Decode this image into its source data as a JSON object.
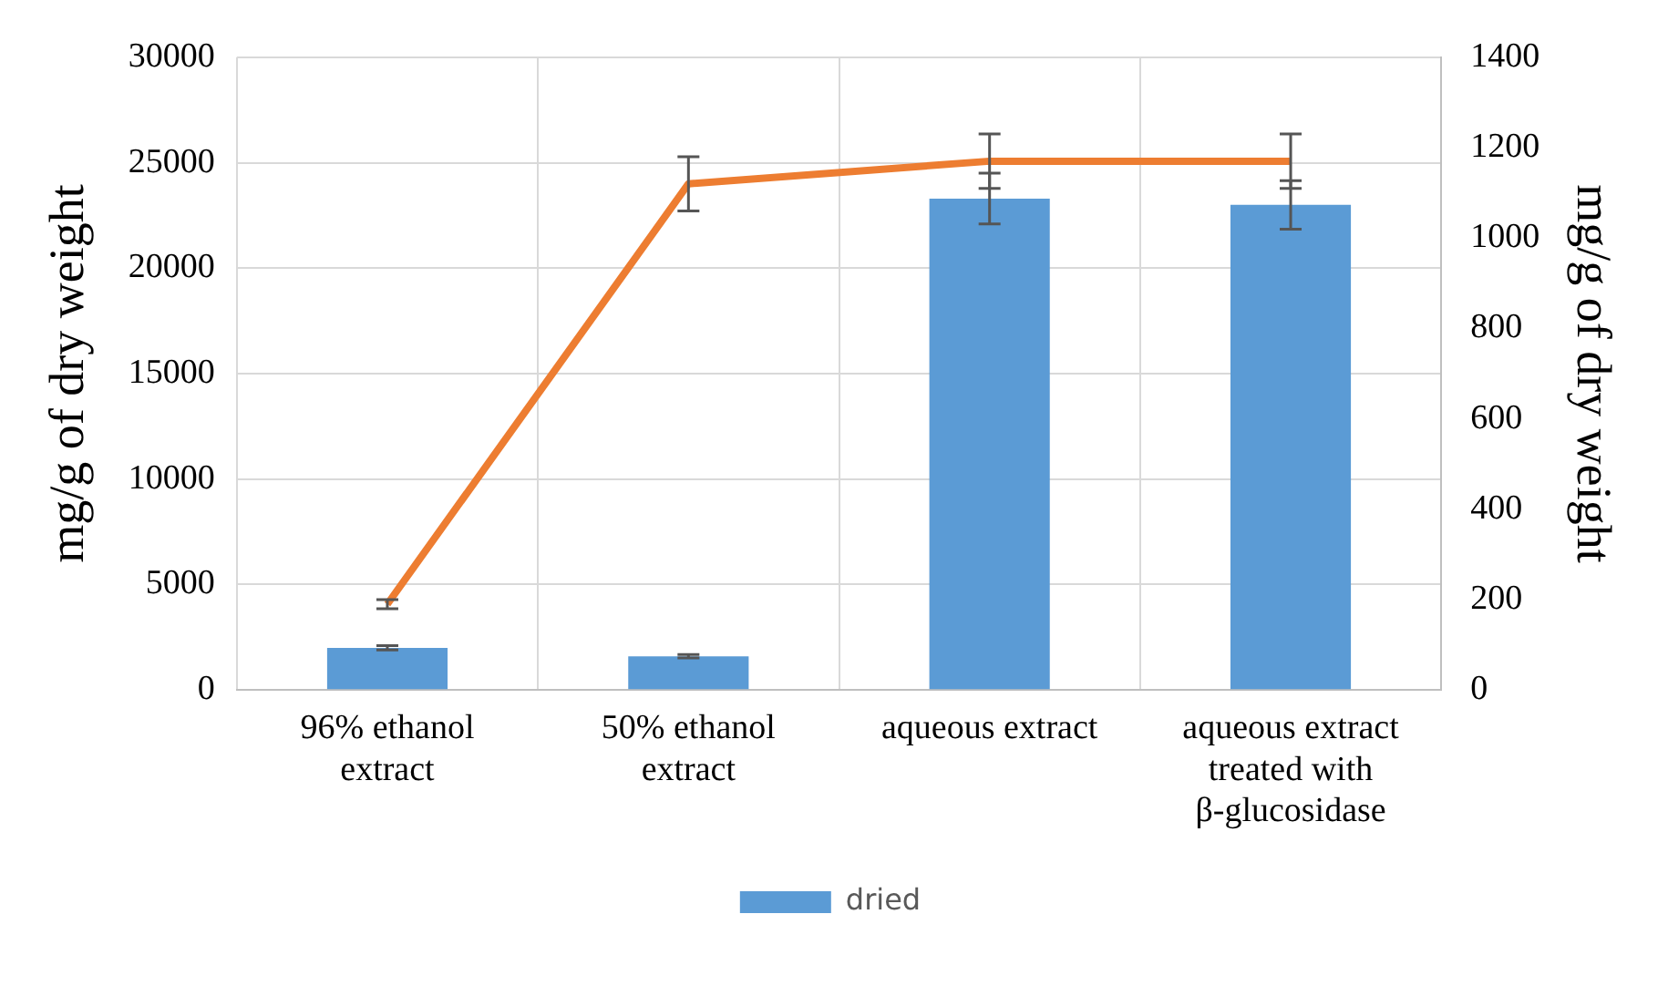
{
  "chart_data": {
    "type": "bar",
    "categories": [
      "96% ethanol extract",
      "50% ethanol extract",
      "aqueous extract",
      "aqueous extract treated with β-glucosidase"
    ],
    "series": [
      {
        "name": "dried",
        "color": "#5b9bd5",
        "values": [
          2000,
          1600,
          23300,
          23000
        ],
        "errors": [
          100,
          80,
          1200,
          1150
        ]
      },
      {
        "type": "line",
        "axis": "y2",
        "color": "#ed7d31",
        "values": [
          190,
          1120,
          1170,
          1170
        ],
        "errors": [
          10,
          60,
          60,
          60
        ]
      }
    ],
    "ylabel": "mg/g of dry weight",
    "y2label": "mg/g of dry weight",
    "ylim": [
      0,
      30000
    ],
    "yticks": [
      0,
      5000,
      10000,
      15000,
      20000,
      25000,
      30000
    ],
    "y2lim": [
      0,
      1400
    ],
    "y2ticks": [
      0,
      200,
      400,
      600,
      800,
      1000,
      1200,
      1400
    ],
    "grid": true,
    "legend": "bottom",
    "marker": "none",
    "line_style": "solid"
  }
}
